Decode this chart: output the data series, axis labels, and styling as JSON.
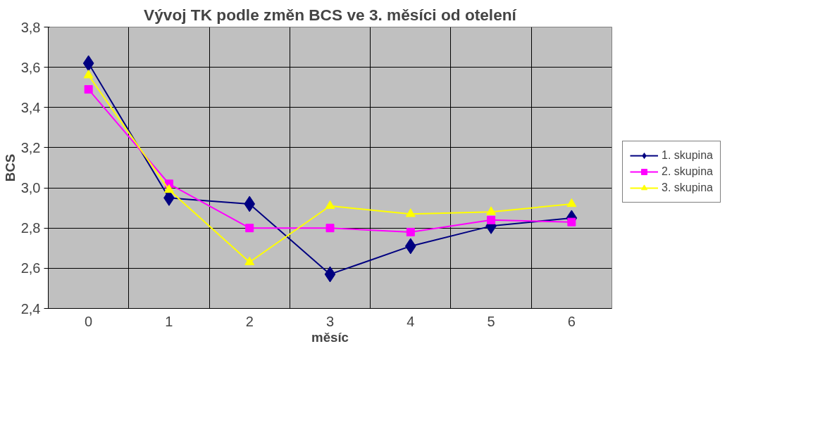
{
  "chart_data": {
    "type": "line",
    "title": "Vývoj TK podle změn BCS ve 3. měsíci od otelení",
    "xlabel": "měsíc",
    "ylabel": "BCS",
    "categories": [
      "0",
      "1",
      "2",
      "3",
      "4",
      "5",
      "6"
    ],
    "series": [
      {
        "name": "1. skupina",
        "color": "#000080",
        "marker": "diamond",
        "values": [
          3.62,
          2.95,
          2.92,
          2.57,
          2.71,
          2.81,
          2.85
        ]
      },
      {
        "name": "2. skupina",
        "color": "#ff00ff",
        "marker": "square",
        "values": [
          3.49,
          3.02,
          2.8,
          2.8,
          2.78,
          2.84,
          2.83
        ]
      },
      {
        "name": "3. skupina",
        "color": "#ffff00",
        "marker": "triangle",
        "values": [
          3.56,
          2.99,
          2.63,
          2.91,
          2.87,
          2.88,
          2.92
        ]
      }
    ],
    "ylim": [
      2.4,
      3.8
    ],
    "yticks": [
      {
        "value": 2.4,
        "label": "2,4"
      },
      {
        "value": 2.6,
        "label": "2,6"
      },
      {
        "value": 2.8,
        "label": "2,8"
      },
      {
        "value": 3.0,
        "label": "3,0"
      },
      {
        "value": 3.2,
        "label": "3,2"
      },
      {
        "value": 3.4,
        "label": "3,4"
      },
      {
        "value": 3.6,
        "label": "3,6"
      },
      {
        "value": 3.8,
        "label": "3,8"
      }
    ],
    "grid": true,
    "legend": "right",
    "line_style": "solid"
  }
}
